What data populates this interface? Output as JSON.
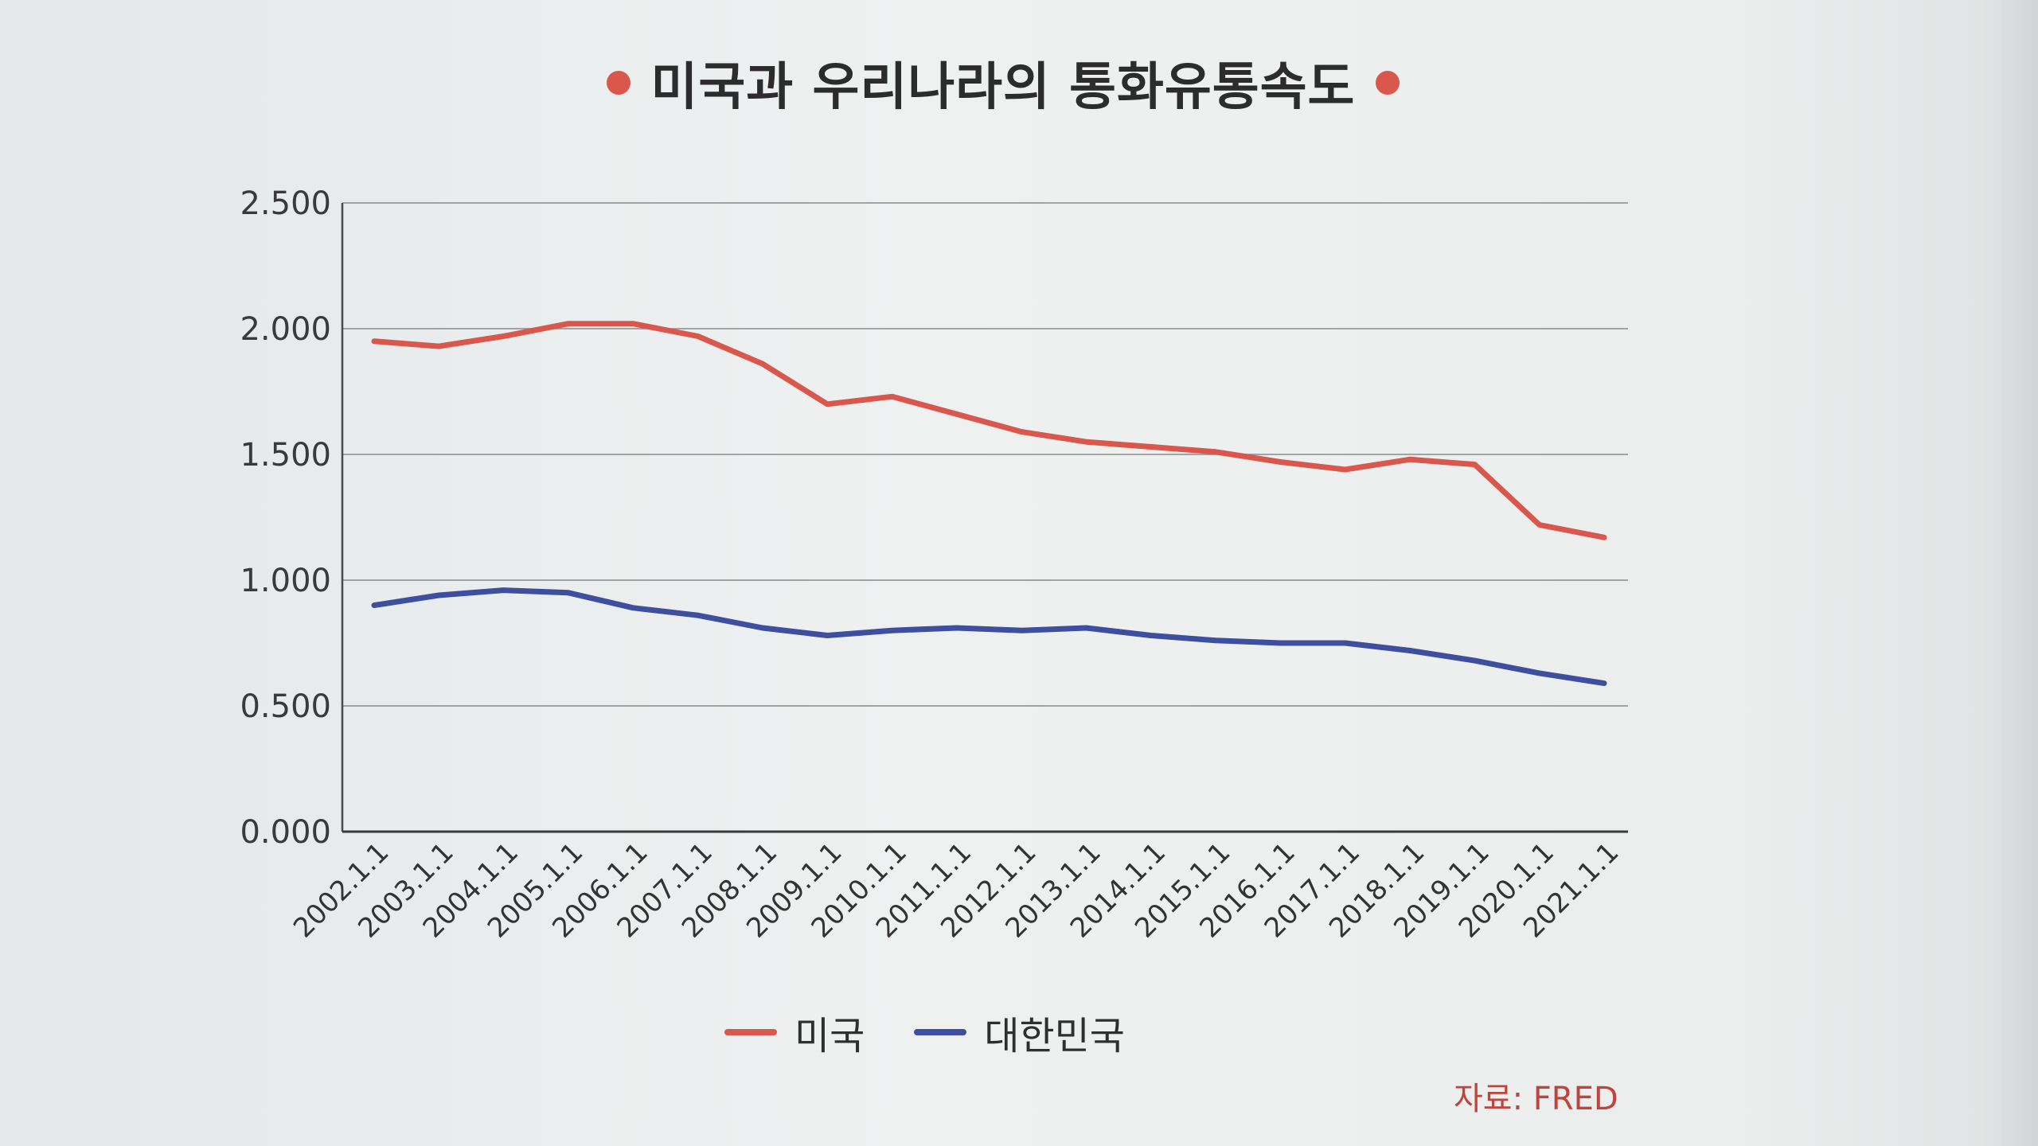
{
  "title": "미국과 우리나라의 통화유통속도",
  "source": "자료: FRED",
  "colors": {
    "usa": "#d9574c",
    "korea": "#3d4f9e",
    "title_dot": "#d9574c",
    "source": "#c0443c"
  },
  "chart_data": {
    "type": "line",
    "title": "미국과 우리나라의 통화유통속도",
    "xlabel": "",
    "ylabel": "",
    "ylim": [
      0,
      2.5
    ],
    "yticks": [
      "0.000",
      "0.500",
      "1.000",
      "1.500",
      "2.000",
      "2.500"
    ],
    "grid": true,
    "legend": "bottom-center",
    "categories": [
      "2002.1.1",
      "2003.1.1",
      "2004.1.1",
      "2005.1.1",
      "2006.1.1",
      "2007.1.1",
      "2008.1.1",
      "2009.1.1",
      "2010.1.1",
      "2011.1.1",
      "2012.1.1",
      "2013.1.1",
      "2014.1.1",
      "2015.1.1",
      "2016.1.1",
      "2017.1.1",
      "2018.1.1",
      "2019.1.1",
      "2020.1.1",
      "2021.1.1"
    ],
    "series": [
      {
        "name": "미국",
        "color": "#d9574c",
        "values": [
          1.95,
          1.93,
          1.97,
          2.02,
          2.02,
          1.97,
          1.86,
          1.7,
          1.73,
          1.66,
          1.59,
          1.55,
          1.53,
          1.51,
          1.47,
          1.44,
          1.48,
          1.46,
          1.22,
          1.17
        ]
      },
      {
        "name": "대한민국",
        "color": "#3d4f9e",
        "values": [
          0.9,
          0.94,
          0.96,
          0.95,
          0.89,
          0.86,
          0.81,
          0.78,
          0.8,
          0.81,
          0.8,
          0.81,
          0.78,
          0.76,
          0.75,
          0.75,
          0.72,
          0.68,
          0.63,
          0.59
        ]
      }
    ]
  }
}
